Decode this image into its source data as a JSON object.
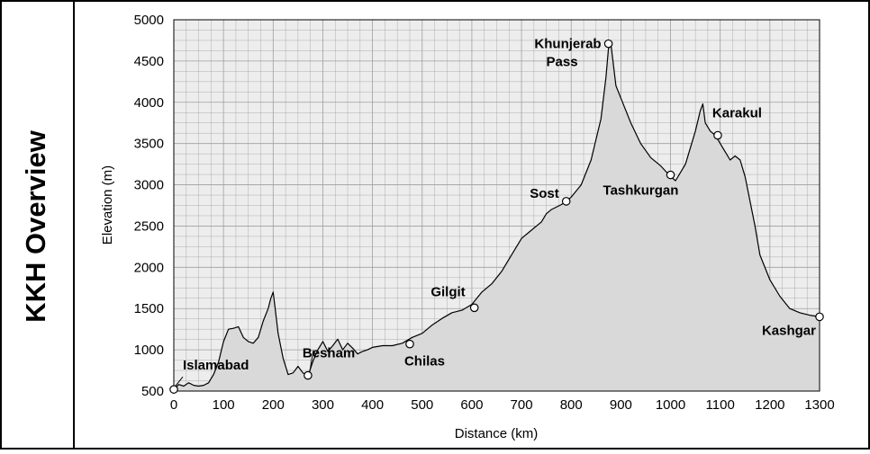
{
  "sidebar": {
    "title": "KKH Overview"
  },
  "chart_data": {
    "type": "area",
    "title": "",
    "xlabel": "Distance (km)",
    "ylabel": "Elevation (m)",
    "xlim": [
      0,
      1300
    ],
    "ylim": [
      500,
      5000
    ],
    "xticks": [
      0,
      100,
      200,
      300,
      400,
      500,
      600,
      700,
      800,
      900,
      1000,
      1100,
      1200,
      1300
    ],
    "yticks": [
      500,
      1000,
      1500,
      2000,
      2500,
      3000,
      3500,
      4000,
      4500,
      5000
    ],
    "grid": true,
    "colors": {
      "fill": "#d9d9d9",
      "line": "#000000",
      "grid": "#9e9e9e",
      "plot_bg": "#ededed"
    },
    "series": [
      {
        "x": [
          0,
          10,
          20,
          30,
          40,
          50,
          60,
          70,
          80,
          90,
          100,
          110,
          120,
          130,
          140,
          150,
          160,
          170,
          180,
          190,
          195,
          200,
          205,
          210,
          220,
          230,
          240,
          250,
          260,
          270,
          280,
          290,
          300,
          310,
          320,
          330,
          340,
          350,
          360,
          370,
          380,
          390,
          400,
          420,
          440,
          460,
          480,
          500,
          520,
          540,
          560,
          580,
          600,
          620,
          640,
          660,
          680,
          700,
          720,
          740,
          750,
          760,
          780,
          790,
          800,
          820,
          840,
          860,
          870,
          875,
          880,
          890,
          900,
          920,
          940,
          960,
          980,
          1000,
          1010,
          1020,
          1030,
          1040,
          1050,
          1060,
          1065,
          1070,
          1080,
          1090,
          1100,
          1110,
          1120,
          1130,
          1140,
          1150,
          1160,
          1170,
          1180,
          1200,
          1220,
          1240,
          1260,
          1280,
          1300
        ],
        "y": [
          520,
          580,
          560,
          600,
          570,
          560,
          570,
          600,
          700,
          850,
          1100,
          1250,
          1260,
          1280,
          1150,
          1100,
          1080,
          1150,
          1350,
          1500,
          1620,
          1700,
          1450,
          1200,
          900,
          700,
          720,
          800,
          720,
          680,
          860,
          1000,
          1100,
          980,
          1050,
          1130,
          1000,
          1080,
          1020,
          950,
          980,
          1000,
          1030,
          1050,
          1050,
          1080,
          1150,
          1200,
          1300,
          1380,
          1450,
          1480,
          1550,
          1700,
          1800,
          1950,
          2150,
          2350,
          2450,
          2550,
          2650,
          2700,
          2760,
          2800,
          2850,
          3000,
          3300,
          3800,
          4300,
          4650,
          4700,
          4200,
          4050,
          3750,
          3500,
          3330,
          3230,
          3100,
          3050,
          3150,
          3250,
          3450,
          3650,
          3900,
          3980,
          3750,
          3650,
          3600,
          3500,
          3400,
          3300,
          3350,
          3300,
          3100,
          2800,
          2500,
          2150,
          1850,
          1650,
          1500,
          1450,
          1420,
          1400
        ]
      }
    ],
    "annotations": [
      {
        "label": "Islamabad",
        "x": 0,
        "y": 520,
        "anchor": "right-above"
      },
      {
        "label": "Besham",
        "x": 270,
        "y": 690,
        "anchor": "above-right"
      },
      {
        "label": "Chilas",
        "x": 475,
        "y": 1070,
        "anchor": "below-right"
      },
      {
        "label": "Gilgit",
        "x": 605,
        "y": 1510,
        "anchor": "above-left"
      },
      {
        "label": "Sost",
        "x": 790,
        "y": 2800,
        "anchor": "left"
      },
      {
        "label": "Khunjerab Pass",
        "x": 875,
        "y": 4710,
        "anchor": "left"
      },
      {
        "label": "Tashkurgan",
        "x": 1000,
        "y": 3120,
        "anchor": "below"
      },
      {
        "label": "Karakul",
        "x": 1095,
        "y": 3600,
        "anchor": "above-right"
      },
      {
        "label": "Kashgar",
        "x": 1300,
        "y": 1400,
        "anchor": "below-left"
      }
    ]
  }
}
